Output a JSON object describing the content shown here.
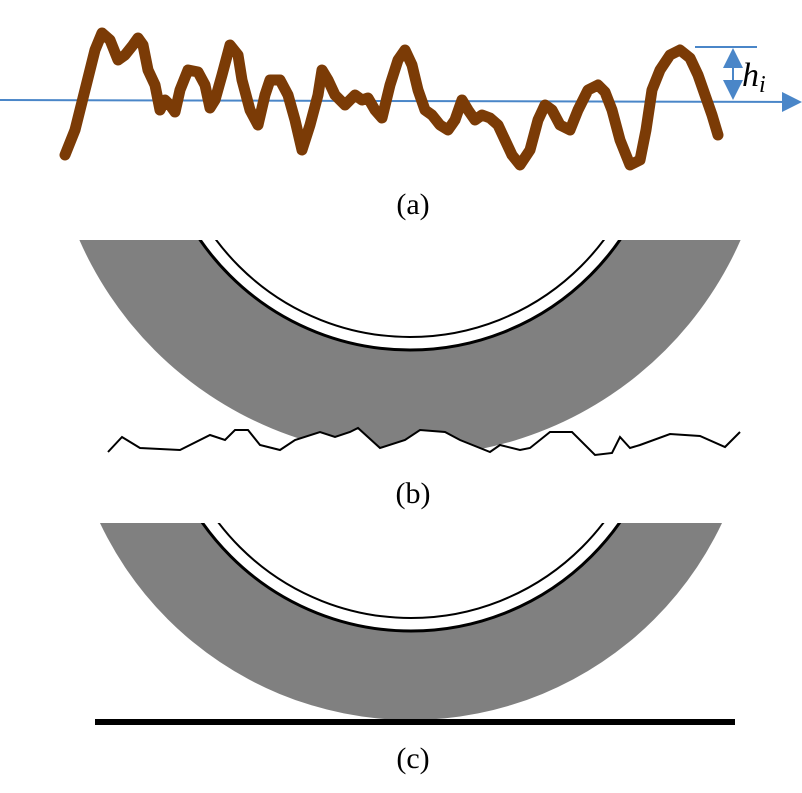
{
  "panels": [
    {
      "label": "(a)",
      "annotation": {
        "base": "h",
        "subscript": "i"
      }
    },
    {
      "label": "(b)"
    },
    {
      "label": "(c)"
    }
  ]
}
